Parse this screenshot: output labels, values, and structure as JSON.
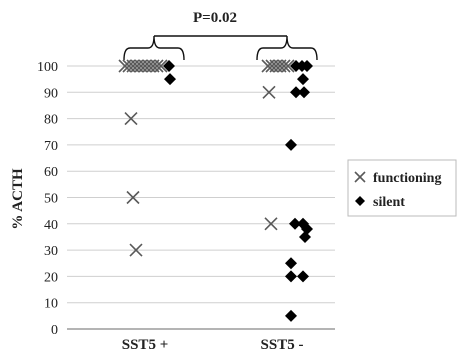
{
  "chart_data": {
    "type": "scatter",
    "ylabel": "% ACTH",
    "xlabel": "",
    "ylim": [
      0,
      100
    ],
    "yticks": [
      0,
      10,
      20,
      30,
      40,
      50,
      60,
      70,
      80,
      90,
      100
    ],
    "grid": true,
    "categories": [
      "SST5 +",
      "SST5 -"
    ],
    "annotation": "P=0.02",
    "legend_position": "right",
    "series": [
      {
        "name": "functioning",
        "marker": "x",
        "color": "#595959",
        "points": [
          {
            "category": "SST5 +",
            "y": 100,
            "jitter": -20
          },
          {
            "category": "SST5 +",
            "y": 100,
            "jitter": -16
          },
          {
            "category": "SST5 +",
            "y": 100,
            "jitter": -12
          },
          {
            "category": "SST5 +",
            "y": 100,
            "jitter": -8
          },
          {
            "category": "SST5 +",
            "y": 100,
            "jitter": -4
          },
          {
            "category": "SST5 +",
            "y": 100,
            "jitter": 0
          },
          {
            "category": "SST5 +",
            "y": 100,
            "jitter": 4
          },
          {
            "category": "SST5 +",
            "y": 100,
            "jitter": 8
          },
          {
            "category": "SST5 +",
            "y": 100,
            "jitter": 12
          },
          {
            "category": "SST5 +",
            "y": 100,
            "jitter": 16
          },
          {
            "category": "SST5 +",
            "y": 80,
            "jitter": -14
          },
          {
            "category": "SST5 +",
            "y": 50,
            "jitter": -12
          },
          {
            "category": "SST5 +",
            "y": 30,
            "jitter": -9
          },
          {
            "category": "SST5 -",
            "y": 100,
            "jitter": -14
          },
          {
            "category": "SST5 -",
            "y": 100,
            "jitter": -10
          },
          {
            "category": "SST5 -",
            "y": 100,
            "jitter": -6
          },
          {
            "category": "SST5 -",
            "y": 100,
            "jitter": -2
          },
          {
            "category": "SST5 -",
            "y": 100,
            "jitter": 2
          },
          {
            "category": "SST5 -",
            "y": 100,
            "jitter": 6
          },
          {
            "category": "SST5 -",
            "y": 90,
            "jitter": -13
          },
          {
            "category": "SST5 -",
            "y": 40,
            "jitter": -11
          }
        ]
      },
      {
        "name": "silent",
        "marker": "diamond",
        "color": "#000000",
        "points": [
          {
            "category": "SST5 +",
            "y": 100,
            "jitter": 24
          },
          {
            "category": "SST5 +",
            "y": 95,
            "jitter": 25
          },
          {
            "category": "SST5 -",
            "y": 100,
            "jitter": 14
          },
          {
            "category": "SST5 -",
            "y": 100,
            "jitter": 20
          },
          {
            "category": "SST5 -",
            "y": 100,
            "jitter": 25
          },
          {
            "category": "SST5 -",
            "y": 95,
            "jitter": 21
          },
          {
            "category": "SST5 -",
            "y": 90,
            "jitter": 14
          },
          {
            "category": "SST5 -",
            "y": 90,
            "jitter": 22
          },
          {
            "category": "SST5 -",
            "y": 70,
            "jitter": 9
          },
          {
            "category": "SST5 -",
            "y": 40,
            "jitter": 13
          },
          {
            "category": "SST5 -",
            "y": 40,
            "jitter": 21
          },
          {
            "category": "SST5 -",
            "y": 38,
            "jitter": 25
          },
          {
            "category": "SST5 -",
            "y": 35,
            "jitter": 23
          },
          {
            "category": "SST5 -",
            "y": 25,
            "jitter": 9
          },
          {
            "category": "SST5 -",
            "y": 20,
            "jitter": 9
          },
          {
            "category": "SST5 -",
            "y": 20,
            "jitter": 21
          },
          {
            "category": "SST5 -",
            "y": 5,
            "jitter": 9
          }
        ]
      }
    ]
  }
}
